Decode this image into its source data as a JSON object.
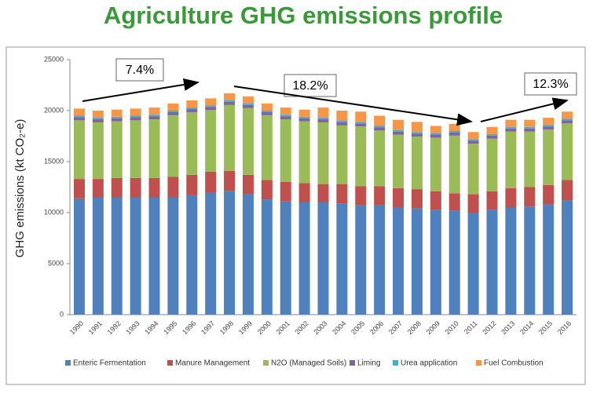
{
  "chart_data": {
    "type": "stacked_bar",
    "title": "Agriculture GHG emissions profile",
    "y_label": "GHG emissions (kt CO₂-e)",
    "categories": [
      "1990",
      "1991",
      "1992",
      "1993",
      "1994",
      "1995",
      "1996",
      "1997",
      "1998",
      "1999",
      "2000",
      "2001",
      "2002",
      "2003",
      "2004",
      "2005",
      "2006",
      "2007",
      "2008",
      "2009",
      "2010",
      "2011",
      "2012",
      "2013",
      "2014",
      "2015",
      "2016"
    ],
    "series": [
      {
        "name": "Enteric Fermentation",
        "color": "#4f81bd",
        "values": [
          11400,
          11500,
          11500,
          11500,
          11500,
          11500,
          11700,
          12000,
          12100,
          11800,
          11300,
          11100,
          11000,
          11000,
          10900,
          10700,
          10700,
          10500,
          10400,
          10300,
          10200,
          10000,
          10300,
          10500,
          10600,
          10800,
          11200
        ]
      },
      {
        "name": "Manure Management",
        "color": "#c0504d",
        "values": [
          1900,
          1800,
          1900,
          1900,
          1900,
          2000,
          2000,
          2000,
          2000,
          1900,
          1900,
          1900,
          1900,
          1800,
          1900,
          1900,
          1900,
          1900,
          1900,
          1800,
          1700,
          1800,
          1800,
          1900,
          1900,
          1900,
          2000
        ]
      },
      {
        "name": "N2O (Managed Soils)",
        "color": "#9bbb59",
        "values": [
          5750,
          5550,
          5550,
          5650,
          5750,
          6050,
          6150,
          6050,
          6450,
          6550,
          6350,
          6150,
          6050,
          6050,
          5750,
          5850,
          5450,
          5250,
          5150,
          5250,
          5650,
          4950,
          5150,
          5550,
          5450,
          5450,
          5550
        ]
      },
      {
        "name": "Liming",
        "color": "#8064a2",
        "values": [
          300,
          300,
          300,
          300,
          300,
          300,
          300,
          300,
          300,
          300,
          300,
          300,
          300,
          300,
          300,
          300,
          300,
          300,
          300,
          300,
          300,
          300,
          300,
          300,
          300,
          300,
          300
        ]
      },
      {
        "name": "Urea application",
        "color": "#4bacc6",
        "values": [
          150,
          150,
          150,
          150,
          150,
          150,
          150,
          150,
          150,
          150,
          150,
          150,
          150,
          150,
          150,
          150,
          150,
          150,
          150,
          150,
          150,
          150,
          150,
          150,
          150,
          150,
          150
        ]
      },
      {
        "name": "Fuel Combustion",
        "color": "#f79646",
        "values": [
          700,
          700,
          700,
          700,
          700,
          700,
          700,
          700,
          700,
          700,
          700,
          700,
          700,
          1000,
          1000,
          1000,
          1000,
          1000,
          1000,
          700,
          700,
          700,
          700,
          700,
          700,
          700,
          700
        ]
      }
    ],
    "ylim": [
      0,
      25000
    ],
    "yticks": [
      0,
      5000,
      10000,
      15000,
      20000,
      25000
    ],
    "annotations": [
      "7.4%",
      "18.2%",
      "12.3%"
    ]
  }
}
